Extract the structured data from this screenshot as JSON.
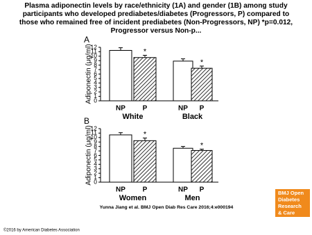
{
  "title": "Plasma adiponectin levels by race/ethnicity (1A) and gender (1B) among study participants who developed prediabetes/diabetes (Progressors, P) compared to those who remained free of incident prediabetes (Non-Progressors, NP) *p=0.012, Progressor versus Non-p...",
  "chart_data": [
    {
      "type": "bar",
      "panel": "A",
      "y_label": "Adiponectin (μg/ml)",
      "categories": [
        "NP",
        "P",
        "NP",
        "P"
      ],
      "groups": [
        "White",
        "Black"
      ],
      "values": [
        11.3,
        9.7,
        8.9,
        7.3
      ],
      "errors": [
        0.6,
        0.5,
        0.5,
        0.5
      ],
      "hatched": [
        false,
        true,
        false,
        true
      ],
      "markers": [
        null,
        "*",
        null,
        "*"
      ],
      "ylim": [
        0,
        12
      ],
      "yticks": [
        0,
        1,
        2,
        3,
        4,
        5,
        6,
        7,
        8,
        9,
        10,
        11,
        12
      ]
    },
    {
      "type": "bar",
      "panel": "B",
      "y_label": "Adiponectin (μg/ml)",
      "categories": [
        "NP",
        "P",
        "NP",
        "P"
      ],
      "groups": [
        "Women",
        "Men"
      ],
      "values": [
        10.6,
        9.3,
        7.6,
        7.1
      ],
      "errors": [
        0.5,
        0.6,
        0.4,
        0.3
      ],
      "hatched": [
        false,
        true,
        false,
        true
      ],
      "markers": [
        null,
        "*",
        null,
        "*"
      ],
      "ylim": [
        0,
        12
      ],
      "yticks": [
        0,
        1,
        2,
        3,
        4,
        5,
        6,
        7,
        8,
        9,
        10,
        11,
        12
      ]
    }
  ],
  "citation": "Yunna Jiang et al. BMJ Open Diab Res Care 2016;4:e000194",
  "logo": [
    "BMJ Open",
    "Diabetes",
    "Research",
    "& Care"
  ],
  "copyright": "©2016 by American Diabetes Association"
}
